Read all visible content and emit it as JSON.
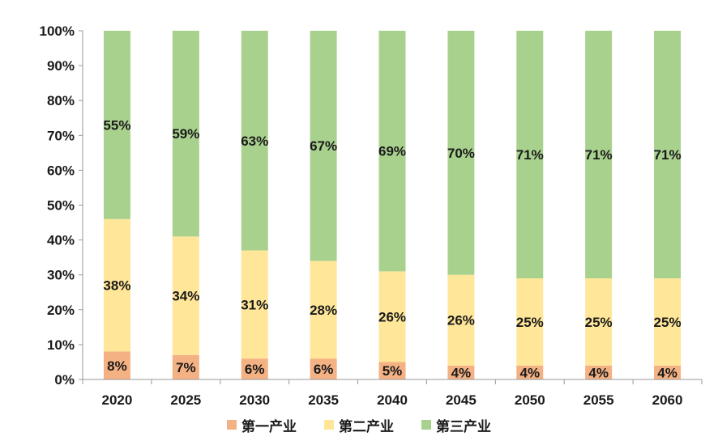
{
  "chart_data": {
    "type": "bar",
    "stacked": true,
    "categories": [
      "2020",
      "2025",
      "2030",
      "2035",
      "2040",
      "2045",
      "2050",
      "2055",
      "2060"
    ],
    "series": [
      {
        "name": "第一产业",
        "color": "#F4B183",
        "values": [
          8,
          7,
          6,
          6,
          5,
          4,
          4,
          4,
          4
        ],
        "labels": [
          "8%",
          "7%",
          "6%",
          "6%",
          "5%",
          "4%",
          "4%",
          "4%",
          "4%"
        ]
      },
      {
        "name": "第二产业",
        "color": "#FFE699",
        "values": [
          38,
          34,
          31,
          28,
          26,
          26,
          25,
          25,
          25
        ],
        "labels": [
          "38%",
          "34%",
          "31%",
          "28%",
          "26%",
          "26%",
          "25%",
          "25%",
          "25%"
        ]
      },
      {
        "name": "第三产业",
        "color": "#A9D18E",
        "values": [
          55,
          59,
          63,
          67,
          69,
          70,
          71,
          71,
          71
        ],
        "labels": [
          "55%",
          "59%",
          "63%",
          "67%",
          "69%",
          "70%",
          "71%",
          "71%",
          "71%"
        ]
      }
    ],
    "ylim": [
      0,
      100
    ],
    "yticks": [
      "0%",
      "10%",
      "20%",
      "30%",
      "40%",
      "50%",
      "60%",
      "70%",
      "80%",
      "90%",
      "100%"
    ],
    "legend_position": "bottom",
    "grid": false
  }
}
